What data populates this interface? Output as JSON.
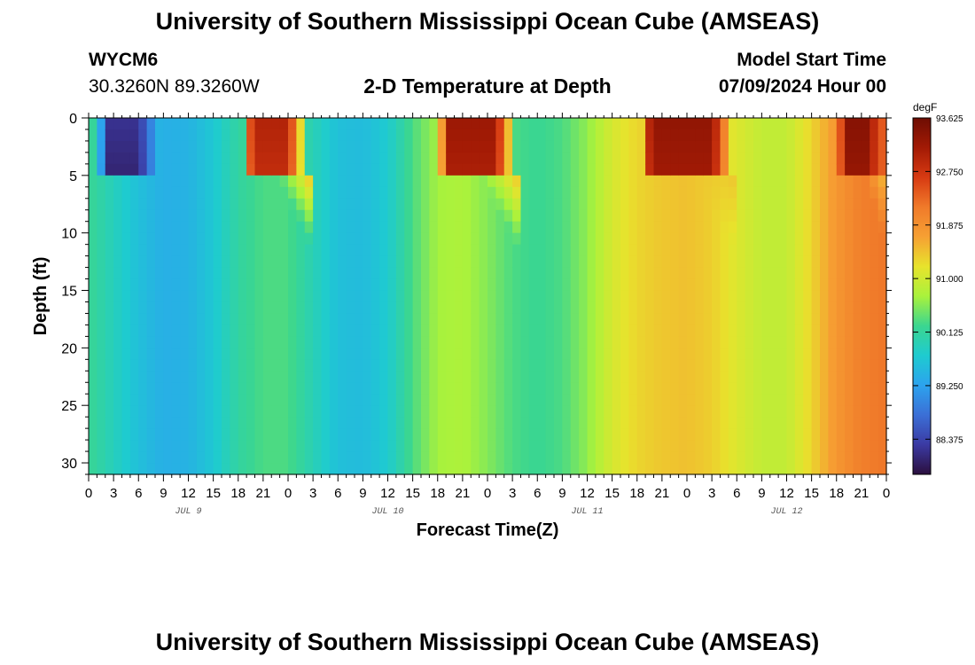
{
  "page": {
    "title_top": "University of Southern Mississippi Ocean Cube (AMSEAS)",
    "title_bottom": "University of Southern Mississippi Ocean Cube (AMSEAS)",
    "station": "WYCM6",
    "coords": "30.3260N  89.3260W",
    "plot_title": "2-D Temperature at Depth",
    "model_label": "Model Start Time",
    "model_time": "07/09/2024 Hour 00"
  },
  "chart_data": {
    "type": "heatmap",
    "title": "2-D Temperature at Depth",
    "xlabel": "Forecast Time(Z)",
    "ylabel": "Depth (ft)",
    "x_range_hours": [
      0,
      96
    ],
    "y_range_ft": [
      0,
      31
    ],
    "x_tick_labels": [
      "0",
      "3",
      "6",
      "9",
      "12",
      "15",
      "18",
      "21",
      "0",
      "3",
      "6",
      "9",
      "12",
      "15",
      "18",
      "21",
      "0",
      "3",
      "6",
      "9",
      "12",
      "15",
      "18",
      "21",
      "0",
      "3",
      "6",
      "9",
      "12",
      "15",
      "18",
      "21",
      "0"
    ],
    "y_ticks": [
      0,
      5,
      10,
      15,
      20,
      25,
      30
    ],
    "date_labels": [
      {
        "label": "JUL 9",
        "hour": 12
      },
      {
        "label": "JUL 10",
        "hour": 36
      },
      {
        "label": "JUL 11",
        "hour": 60
      },
      {
        "label": "JUL 12",
        "hour": 84
      }
    ],
    "colorbar": {
      "unit": "degF",
      "min": 87.8,
      "max": 93.625,
      "ticks": [
        "93.625",
        "92.750",
        "91.875",
        "91.000",
        "90.125",
        "89.250",
        "88.375"
      ],
      "colors": [
        "#2b0f3d",
        "#3b3aa3",
        "#3b6fd6",
        "#2ca3ee",
        "#1ecbd0",
        "#3bd690",
        "#a9f23c",
        "#e8e32c",
        "#f6a033",
        "#f07a2a",
        "#d73a12",
        "#a21a05",
        "#6e0d03"
      ]
    },
    "bottom_temps_by_hour": [
      {
        "hour": 0,
        "temp": 90.2
      },
      {
        "hour": 6,
        "temp": 89.6
      },
      {
        "hour": 9,
        "temp": 89.4
      },
      {
        "hour": 12,
        "temp": 89.45
      },
      {
        "hour": 15,
        "temp": 89.7
      },
      {
        "hour": 18,
        "temp": 90.1
      },
      {
        "hour": 21,
        "temp": 90.3
      },
      {
        "hour": 24,
        "temp": 90.3
      },
      {
        "hour": 27,
        "temp": 89.95
      },
      {
        "hour": 30,
        "temp": 89.6
      },
      {
        "hour": 33,
        "temp": 89.55
      },
      {
        "hour": 36,
        "temp": 89.75
      },
      {
        "hour": 39,
        "temp": 90.3
      },
      {
        "hour": 42,
        "temp": 90.7
      },
      {
        "hour": 45,
        "temp": 90.75
      },
      {
        "hour": 48,
        "temp": 90.55
      },
      {
        "hour": 51,
        "temp": 90.3
      },
      {
        "hour": 54,
        "temp": 90.2
      },
      {
        "hour": 57,
        "temp": 90.3
      },
      {
        "hour": 60,
        "temp": 90.6
      },
      {
        "hour": 63,
        "temp": 91.05
      },
      {
        "hour": 66,
        "temp": 91.3
      },
      {
        "hour": 69,
        "temp": 91.4
      },
      {
        "hour": 72,
        "temp": 91.45
      },
      {
        "hour": 75,
        "temp": 91.35
      },
      {
        "hour": 78,
        "temp": 91.1
      },
      {
        "hour": 81,
        "temp": 90.9
      },
      {
        "hour": 84,
        "temp": 90.9
      },
      {
        "hour": 87,
        "temp": 91.3
      },
      {
        "hour": 90,
        "temp": 91.8
      },
      {
        "hour": 93,
        "temp": 92.1
      },
      {
        "hour": 96,
        "temp": 92.2
      }
    ],
    "surface_events": [
      {
        "type": "warm",
        "start_h": 18.5,
        "end_h": 26.5,
        "depth_ft": 5,
        "peak": 93.0
      },
      {
        "type": "warm",
        "start_h": 42.0,
        "end_h": 51.5,
        "depth_ft": 5,
        "peak": 93.2
      },
      {
        "type": "warm",
        "start_h": 66.5,
        "end_h": 77.5,
        "depth_ft": 5,
        "peak": 93.3
      },
      {
        "type": "warm",
        "start_h": 90.0,
        "end_h": 96.0,
        "depth_ft": 5,
        "peak": 93.4
      },
      {
        "type": "cold",
        "start_h": 1.0,
        "end_h": 8.5,
        "depth_ft": 5,
        "peak": 88.2
      }
    ]
  }
}
